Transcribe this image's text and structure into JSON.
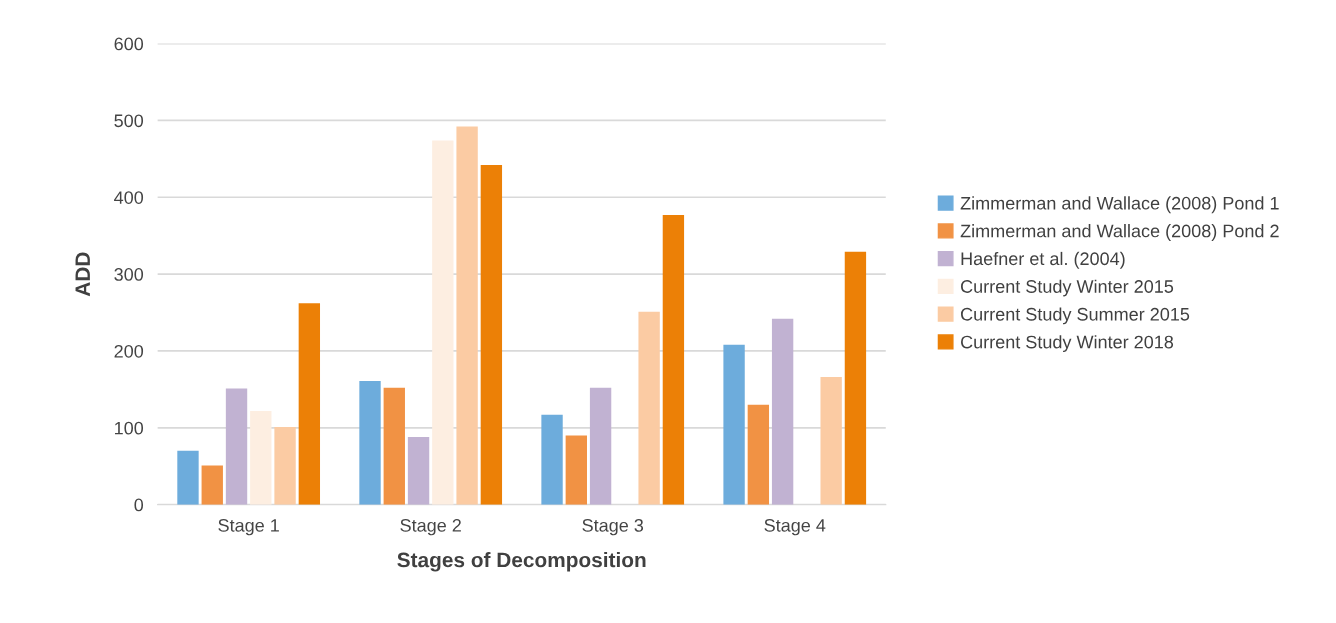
{
  "chart_data": {
    "type": "bar",
    "xlabel": "Stages of Decomposition",
    "ylabel": "ADD",
    "categories": [
      "Stage 1",
      "Stage 2",
      "Stage 3",
      "Stage 4"
    ],
    "series": [
      {
        "name": "Zimmerman and Wallace (2008) Pond 1",
        "color": "#6dacdc",
        "values": [
          70,
          161,
          117,
          208
        ]
      },
      {
        "name": "Zimmerman and Wallace (2008) Pond 2",
        "color": "#f19244",
        "values": [
          51,
          152,
          90,
          130
        ]
      },
      {
        "name": "Haefner et al. (2004)",
        "color": "#c1b2d2",
        "values": [
          151,
          88,
          152,
          242
        ]
      },
      {
        "name": "Current Study Winter 2015",
        "color": "#fdeee1",
        "values": [
          122,
          474,
          null,
          null
        ]
      },
      {
        "name": "Current Study Summer 2015",
        "color": "#fbcba3",
        "values": [
          101,
          492,
          251,
          166
        ]
      },
      {
        "name": "Current Study Winter 2018",
        "color": "#ec8006",
        "values": [
          262,
          442,
          377,
          329
        ]
      }
    ],
    "ylim": [
      0,
      600
    ],
    "yticks": [
      0,
      100,
      200,
      300,
      400,
      500,
      600
    ],
    "grid": "y",
    "legend": "right"
  }
}
